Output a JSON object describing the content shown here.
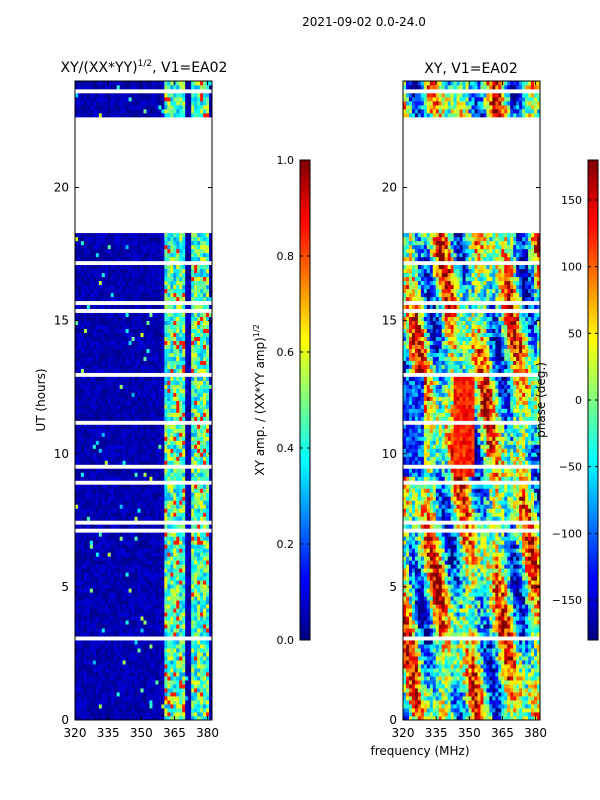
{
  "figure": {
    "suptitle": "2021-09-02 0.0-24.0",
    "xlabel_shared": "frequency (MHz)"
  },
  "colors": {
    "jet": [
      "#00007f",
      "#0000ff",
      "#007fff",
      "#00ffff",
      "#7fff7f",
      "#ffff00",
      "#ff7f00",
      "#ff0000",
      "#7f0000"
    ],
    "blank": "#ffffff",
    "frame": "#000000"
  },
  "chart_data": [
    {
      "type": "heatmap",
      "title": "XY/(XX*YY)",
      "title_superscript": "1/2",
      "title_suffix": ", V1=EA02",
      "xlabel": "",
      "ylabel": "UT (hours)",
      "xlim": [
        320,
        382
      ],
      "ylim": [
        0,
        24
      ],
      "xticks": [
        320,
        335,
        350,
        365,
        380
      ],
      "xtick_labels": [
        "320",
        "335",
        "350",
        "365",
        "380"
      ],
      "yticks": [
        0,
        5,
        10,
        15,
        20
      ],
      "ytick_labels": [
        "0",
        "5",
        "10",
        "15",
        "20"
      ],
      "colorbar": {
        "label": "XY amp. / (XX*YY amp)",
        "label_superscript": "1/2",
        "range": [
          0.0,
          1.0
        ],
        "ticks": [
          0.0,
          0.2,
          0.4,
          0.6,
          0.8,
          1.0
        ],
        "tick_labels": [
          "0.0",
          "0.2",
          "0.4",
          "0.6",
          "0.8",
          "1.0"
        ]
      },
      "flagged_ut_ranges": [
        [
          18.3,
          22.6
        ]
      ],
      "active_freq_bands": [
        [
          361,
          366
        ],
        [
          366,
          370
        ],
        [
          372,
          376
        ],
        [
          377,
          380
        ]
      ],
      "typical_values": {
        "background": 0.05,
        "active_bands": 0.45,
        "peak": 0.85
      }
    },
    {
      "type": "heatmap",
      "title": "XY, V1=EA02",
      "xlabel": "",
      "ylabel": "",
      "xlim": [
        320,
        382
      ],
      "ylim": [
        0,
        24
      ],
      "xticks": [
        320,
        335,
        350,
        365,
        380
      ],
      "xtick_labels": [
        "320",
        "335",
        "350",
        "365",
        "380"
      ],
      "yticks": [
        0,
        5,
        10,
        15,
        20
      ],
      "ytick_labels": [
        "0",
        "5",
        "10",
        "15",
        "20"
      ],
      "colorbar": {
        "label": "phase (deg.)",
        "range": [
          -180,
          180
        ],
        "ticks": [
          -150,
          -100,
          -50,
          0,
          50,
          100,
          150
        ],
        "tick_labels": [
          "−150",
          "−100",
          "−50",
          "0",
          "50",
          "100",
          "150"
        ]
      },
      "flagged_ut_ranges": [
        [
          18.3,
          22.6
        ]
      ],
      "phase_structure": "noisy phase across band with warm vertical stripes near 343-352 MHz between 9 and 13 UT"
    }
  ]
}
